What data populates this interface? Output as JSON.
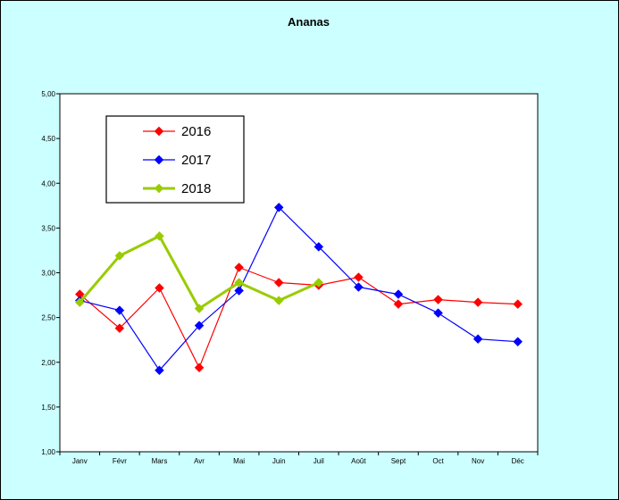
{
  "chart_data": {
    "type": "line",
    "title": "Ananas",
    "xlabel": "",
    "ylabel": "",
    "categories": [
      "Janv",
      "Févr",
      "Mars",
      "Avr",
      "Mai",
      "Juin",
      "Juil",
      "Août",
      "Sept",
      "Oct",
      "Nov",
      "Déc"
    ],
    "ylim": [
      1.0,
      5.0
    ],
    "yticks": [
      "1,00",
      "1,50",
      "2,00",
      "2,50",
      "3,00",
      "3,50",
      "4,00",
      "4,50",
      "5,00"
    ],
    "grid": false,
    "legend_position": "top-left",
    "series": [
      {
        "name": "2016",
        "color": "#ff0000",
        "line_width": "thin",
        "values": [
          2.76,
          2.38,
          2.83,
          1.94,
          3.06,
          2.89,
          2.86,
          2.95,
          2.65,
          2.7,
          2.67,
          2.65
        ]
      },
      {
        "name": "2017",
        "color": "#0000ff",
        "line_width": "thin",
        "values": [
          2.69,
          2.58,
          1.91,
          2.41,
          2.8,
          3.73,
          3.29,
          2.84,
          2.76,
          2.55,
          2.26,
          2.23
        ]
      },
      {
        "name": "2018",
        "color": "#99cc00",
        "line_width": "thick",
        "values": [
          2.67,
          3.19,
          3.41,
          2.6,
          2.89,
          2.69,
          2.89,
          null,
          null,
          null,
          null,
          null
        ]
      }
    ]
  },
  "colors": {
    "chart_background": "#ccffff",
    "plot_background": "#ffffff"
  }
}
